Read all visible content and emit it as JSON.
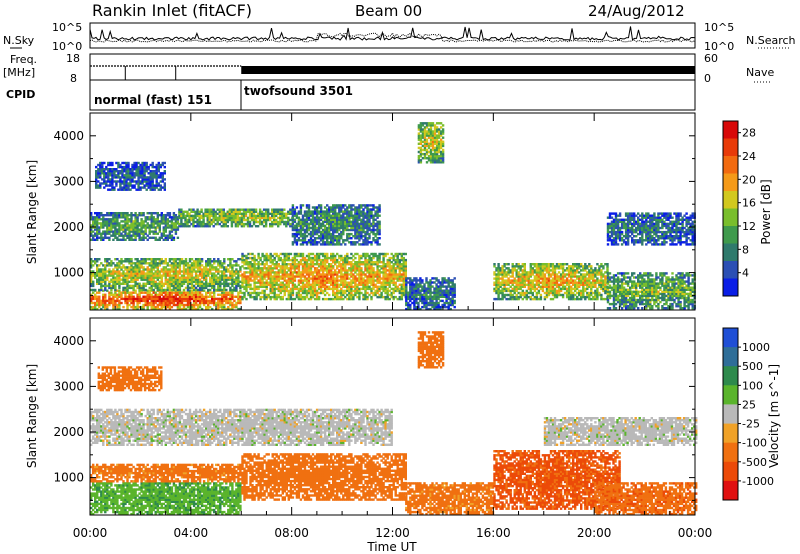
{
  "header": {
    "station": "Rankin Inlet (fitACF)",
    "beam": "Beam 00",
    "date": "24/Aug/2012"
  },
  "side_labels": {
    "nsky": "N.Sky",
    "nsearch": "N.Search",
    "freq": "Freq.",
    "freq_unit": "[MHz]",
    "nave": "Nave",
    "cpid": "CPID"
  },
  "scales": {
    "noise_top": "10^5",
    "noise_bottom": "10^0",
    "freq_top": "18",
    "freq_bottom": "8",
    "nave_top": "60",
    "nave_bottom": "0"
  },
  "cpid_segments": [
    {
      "label": "normal (fast) 151",
      "start_hour": 0,
      "end_hour": 6
    },
    {
      "label": "twofsound 3501",
      "start_hour": 6,
      "end_hour": 24
    }
  ],
  "chart_data": [
    {
      "type": "heatmap",
      "title": "",
      "xlabel": "",
      "ylabel": "Slant Range [km]",
      "xlim": [
        0,
        24
      ],
      "ylim": [
        180,
        4500
      ],
      "x_ticks": [
        "00:00",
        "04:00",
        "08:00",
        "12:00",
        "16:00",
        "20:00",
        "00:00"
      ],
      "y_ticks": [
        1000,
        2000,
        3000,
        4000
      ],
      "colorbar": {
        "label": "Power [dB]",
        "ticks": [
          4,
          8,
          12,
          16,
          20,
          24,
          28
        ],
        "range": [
          0,
          30
        ],
        "colors": [
          "#0a1ee6",
          "#2b4fb4",
          "#2f7a6c",
          "#3f9a4c",
          "#79be2c",
          "#d2c81e",
          "#f59a18",
          "#f26a0f",
          "#e83a08",
          "#d80808"
        ]
      },
      "regions": [
        {
          "t0": 0.0,
          "t1": 6.0,
          "r0": 180,
          "r1": 600,
          "value": 28
        },
        {
          "t0": 0.0,
          "t1": 6.0,
          "r0": 600,
          "r1": 1300,
          "value": 18
        },
        {
          "t0": 6.0,
          "t1": 12.5,
          "r0": 400,
          "r1": 1400,
          "value": 22
        },
        {
          "t0": 0.0,
          "t1": 3.5,
          "r0": 1700,
          "r1": 2300,
          "value": 12
        },
        {
          "t0": 3.5,
          "t1": 8.0,
          "r0": 2000,
          "r1": 2400,
          "value": 16
        },
        {
          "t0": 0.2,
          "t1": 3.0,
          "r0": 2800,
          "r1": 3400,
          "value": 6
        },
        {
          "t0": 8.0,
          "t1": 11.5,
          "r0": 1600,
          "r1": 2500,
          "value": 10
        },
        {
          "t0": 12.5,
          "t1": 14.5,
          "r0": 180,
          "r1": 900,
          "value": 8
        },
        {
          "t0": 13.0,
          "t1": 14.0,
          "r0": 3400,
          "r1": 4300,
          "value": 18
        },
        {
          "t0": 16.0,
          "t1": 20.5,
          "r0": 400,
          "r1": 1200,
          "value": 20
        },
        {
          "t0": 20.5,
          "t1": 24.0,
          "r0": 200,
          "r1": 1000,
          "value": 14
        },
        {
          "t0": 20.5,
          "t1": 24.0,
          "r0": 1600,
          "r1": 2300,
          "value": 8
        }
      ]
    },
    {
      "type": "heatmap",
      "title": "",
      "xlabel": "Time UT",
      "ylabel": "Slant Range [km]",
      "xlim": [
        0,
        24
      ],
      "ylim": [
        180,
        4500
      ],
      "x_ticks": [
        "00:00",
        "04:00",
        "08:00",
        "12:00",
        "16:00",
        "20:00",
        "00:00"
      ],
      "y_ticks": [
        1000,
        2000,
        3000,
        4000
      ],
      "colorbar": {
        "label": "Velocity [m s^-1]",
        "ticks": [
          "1000",
          "500",
          "100",
          "25",
          "-25",
          "-100",
          "-500",
          "-1000"
        ],
        "range": [
          -1200,
          1200
        ],
        "colors": [
          "#1f4fd6",
          "#2f6e98",
          "#2e8a4c",
          "#5ab42c",
          "#b9b9b9",
          "#f0a228",
          "#f07010",
          "#ec4a08",
          "#e01010"
        ]
      },
      "regions": [
        {
          "t0": 0.0,
          "t1": 6.0,
          "r0": 180,
          "r1": 900,
          "value": 80
        },
        {
          "t0": 0.0,
          "t1": 6.0,
          "r0": 900,
          "r1": 1300,
          "value": -150
        },
        {
          "t0": 6.0,
          "t1": 12.5,
          "r0": 500,
          "r1": 1500,
          "value": -300
        },
        {
          "t0": 0.0,
          "t1": 12.0,
          "r0": 1700,
          "r1": 2500,
          "value": 0
        },
        {
          "t0": 0.3,
          "t1": 2.8,
          "r0": 2900,
          "r1": 3400,
          "value": -200
        },
        {
          "t0": 13.0,
          "t1": 14.0,
          "r0": 3400,
          "r1": 4200,
          "value": -300
        },
        {
          "t0": 12.5,
          "t1": 16.0,
          "r0": 180,
          "r1": 900,
          "value": -150
        },
        {
          "t0": 16.0,
          "t1": 21.0,
          "r0": 300,
          "r1": 1600,
          "value": -600
        },
        {
          "t0": 18.0,
          "t1": 24.0,
          "r0": 1700,
          "r1": 2300,
          "value": 0
        },
        {
          "t0": 20.0,
          "t1": 24.0,
          "r0": 180,
          "r1": 900,
          "value": -400
        }
      ]
    }
  ]
}
